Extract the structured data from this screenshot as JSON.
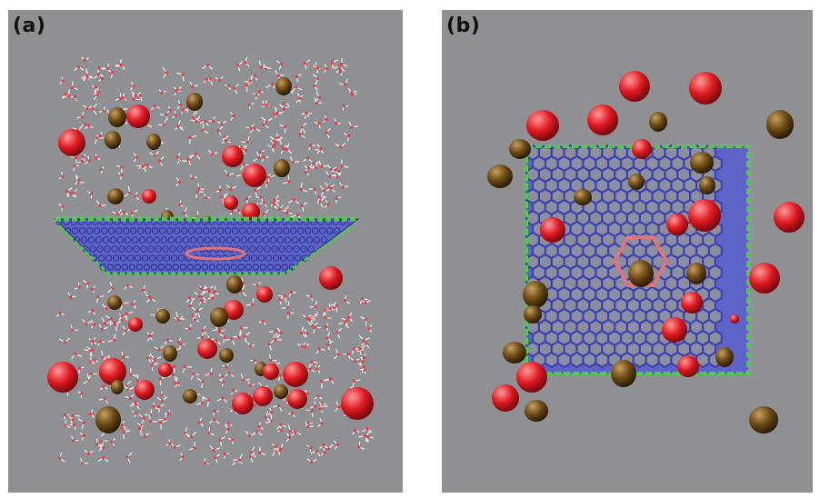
{
  "panels": [
    {
      "id": "a",
      "label": "(a)"
    },
    {
      "id": "b",
      "label": "(b)"
    }
  ],
  "colors": {
    "background": "#8f9093",
    "oxygen_ion": "#e01a22",
    "counter_ion": "#6b4a16",
    "sheet_fill": "#5e63c8",
    "sheet_edge": "#4ccb49",
    "pore_ring": "#e0747a",
    "water_oxygen": "#d9454a",
    "water_hydrogen": "#f0f0f0"
  }
}
